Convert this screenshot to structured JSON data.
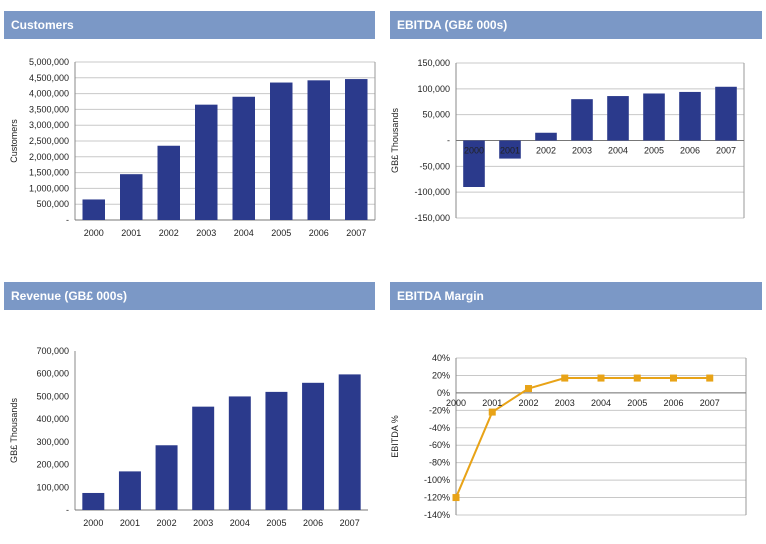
{
  "colors": {
    "header_bg": "#7b98c6",
    "bar": "#2b3a8c",
    "line": "#e8a317",
    "grid": "#c8c8c8"
  },
  "chart_data": [
    {
      "title": "Customers",
      "type": "bar",
      "categories": [
        "2000",
        "2001",
        "2002",
        "2003",
        "2004",
        "2005",
        "2006",
        "2007"
      ],
      "values": [
        650000,
        1450000,
        2350000,
        3650000,
        3900000,
        4350000,
        4420000,
        4460000
      ],
      "ylabel": "Customers",
      "ylim": [
        0,
        5000000
      ],
      "yticks": [
        "-",
        "500,000",
        "1,000,000",
        "1,500,000",
        "2,000,000",
        "2,500,000",
        "3,000,000",
        "3,500,000",
        "4,000,000",
        "4,500,000",
        "5,000,000"
      ],
      "grid": true
    },
    {
      "title": "EBITDA (GB£ 000s)",
      "type": "bar",
      "categories": [
        "2000",
        "2001",
        "2002",
        "2003",
        "2004",
        "2005",
        "2006",
        "2007"
      ],
      "values": [
        -90000,
        -35000,
        15000,
        80000,
        86000,
        91000,
        94000,
        104000
      ],
      "ylabel": "GB£ Thousands",
      "ylim": [
        -150000,
        150000
      ],
      "yticks": [
        "-150,000",
        "-100,000",
        "-50,000",
        "-",
        "50,000",
        "100,000",
        "150,000"
      ],
      "grid": true
    },
    {
      "title": "Revenue (GB£ 000s)",
      "type": "bar",
      "categories": [
        "2000",
        "2001",
        "2002",
        "2003",
        "2004",
        "2005",
        "2006",
        "2007"
      ],
      "values": [
        75000,
        170000,
        285000,
        455000,
        500000,
        520000,
        560000,
        597000
      ],
      "ylabel": "GB£ Thousands",
      "ylim": [
        0,
        700000
      ],
      "yticks": [
        "-",
        "100,000",
        "200,000",
        "300,000",
        "400,000",
        "500,000",
        "600,000",
        "700,000"
      ],
      "grid": false
    },
    {
      "title": "EBITDA Margin",
      "type": "line",
      "categories": [
        "2000",
        "2001",
        "2002",
        "2003",
        "2004",
        "2005",
        "2006",
        "2007"
      ],
      "values": [
        -120,
        -22,
        5,
        17,
        17,
        17,
        17,
        17
      ],
      "ylabel": "EBITDA %",
      "ylim": [
        -140,
        40
      ],
      "yticks": [
        "-140%",
        "-120%",
        "-100%",
        "-80%",
        "-60%",
        "-40%",
        "-20%",
        "0%",
        "20%",
        "40%"
      ],
      "grid": true
    }
  ]
}
